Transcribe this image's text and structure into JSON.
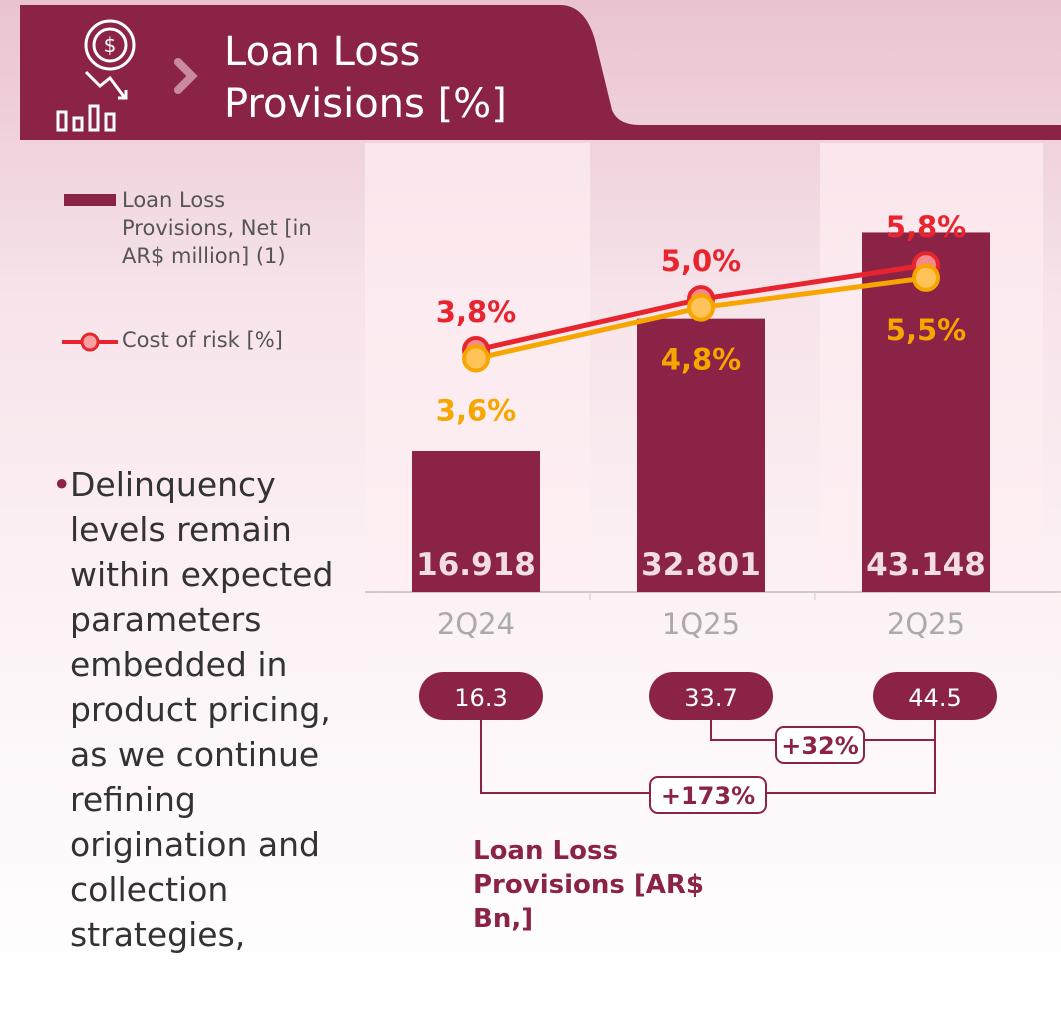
{
  "header": {
    "title": "Loan Loss Provisions [%]"
  },
  "chart_data": {
    "type": "bar",
    "name": "Loan Loss Provisions, Net [in AR$ million] (1)",
    "categories": [
      "2Q24",
      "1Q25",
      "2Q25"
    ],
    "values": [
      16918,
      32801,
      43148
    ],
    "value_labels": [
      "16.918",
      "32.801",
      "43.148"
    ],
    "color": "#8b2346",
    "ylim": [
      0,
      54000
    ],
    "y2lim": [
      -1.9,
      8.7
    ],
    "series": [
      {
        "name": "Cost of risk [%]",
        "color": "#e8252f",
        "axis": "y2",
        "values": [
          3.8,
          5.0,
          5.8
        ],
        "value_labels": [
          "3,8%",
          "5,0%",
          "5,8%"
        ]
      },
      {
        "color": "#f7a600",
        "axis": "y2",
        "values": [
          3.6,
          4.8,
          5.5
        ],
        "value_labels": [
          "3,6%",
          "4,8%",
          "5,5%"
        ]
      }
    ]
  },
  "billions": {
    "values": [
      16.3,
      33.7,
      44.5
    ],
    "caption": "Loan Loss Provisions [AR$ Bn,]",
    "growth": {
      "values": [
        32,
        173
      ],
      "value_labels": [
        "+32%",
        "+173%"
      ]
    }
  },
  "bullet": "Delinquency levels remain within expected parameters embedded in product pricing, as we continue refining origination and collection strategies,"
}
